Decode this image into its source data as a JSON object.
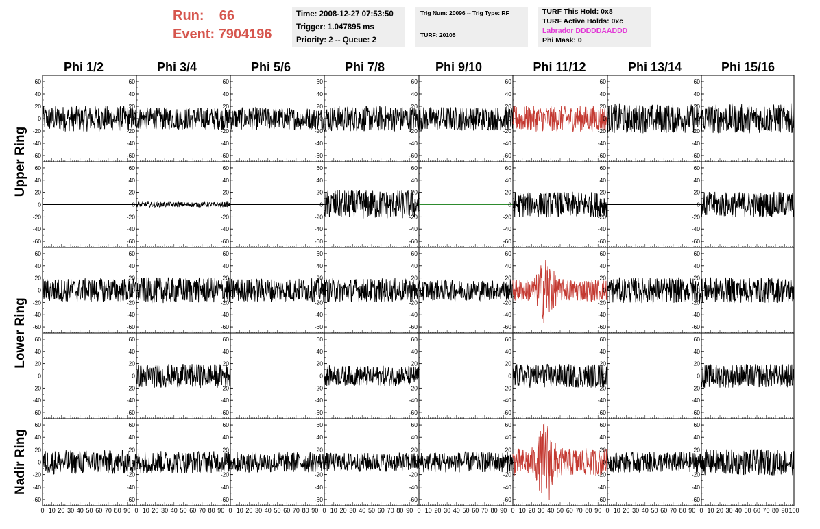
{
  "header": {
    "run_label": "Run:",
    "run_value": "66",
    "event_label": "Event:",
    "event_value": "7904196"
  },
  "time_box": {
    "time": "Time: 2008-12-27 07:53:50",
    "trigger": "Trigger: 1.047895 ms",
    "priority": "Priority: 2 -- Queue: 2"
  },
  "trig_box": {
    "trig": "Trig Num: 20096 -- Trig Type: RF",
    "turf": "TURF: 20105"
  },
  "turf_box": {
    "this_hold": "TURF This Hold: 0x8",
    "active_holds": "TURF Active Holds: 0xc",
    "labrador": "Labrador DDDDDAADDD",
    "phi_mask": "Phi Mask: 0"
  },
  "colors": {
    "highlight_trace": "#c43a32",
    "normal_trace": "#000000",
    "flat_alt_trace": "#2e8b2e",
    "header_red": "#d6564e",
    "labrador_magenta": "#e23ad6"
  },
  "chart_data": {
    "type": "line",
    "columns": [
      "Phi 1/2",
      "Phi 3/4",
      "Phi 5/6",
      "Phi 7/8",
      "Phi 9/10",
      "Phi 11/12",
      "Phi 13/14",
      "Phi 15/16"
    ],
    "rows": [
      "Upper Ring",
      "Upper Ring",
      "Lower Ring",
      "Lower Ring",
      "Nadir Ring"
    ],
    "ring_labels": [
      "Upper Ring",
      "Lower Ring",
      "Nadir Ring"
    ],
    "xlim": [
      0,
      100
    ],
    "ylim": [
      -70,
      70
    ],
    "y_ticks": [
      -60,
      -40,
      -20,
      0,
      20,
      40,
      60
    ],
    "x_ticks": [
      0,
      10,
      20,
      30,
      40,
      50,
      60,
      70,
      80,
      90,
      100
    ],
    "panel_amplitude": [
      [
        15,
        13,
        13,
        15,
        14,
        15,
        17,
        17
      ],
      [
        0,
        3,
        0,
        17,
        0,
        15,
        0,
        15
      ],
      [
        14,
        15,
        14,
        14,
        12,
        13,
        15,
        15
      ],
      [
        0,
        14,
        0,
        12,
        0,
        14,
        0,
        14
      ],
      [
        14,
        13,
        12,
        11,
        12,
        16,
        12,
        15
      ]
    ],
    "panel_style": [
      [
        "normal",
        "normal",
        "normal",
        "normal",
        "normal",
        "highlight",
        "normal",
        "normal"
      ],
      [
        "flat",
        "normal",
        "flat",
        "normal",
        "flat-green",
        "normal",
        "flat",
        "normal"
      ],
      [
        "normal",
        "normal",
        "normal",
        "normal",
        "normal",
        "highlight-pulse",
        "normal",
        "normal"
      ],
      [
        "flat",
        "normal",
        "flat",
        "normal",
        "flat-green",
        "normal",
        "flat",
        "normal"
      ],
      [
        "normal",
        "normal",
        "normal",
        "normal",
        "normal",
        "highlight-pulse",
        "normal",
        "normal"
      ]
    ]
  }
}
